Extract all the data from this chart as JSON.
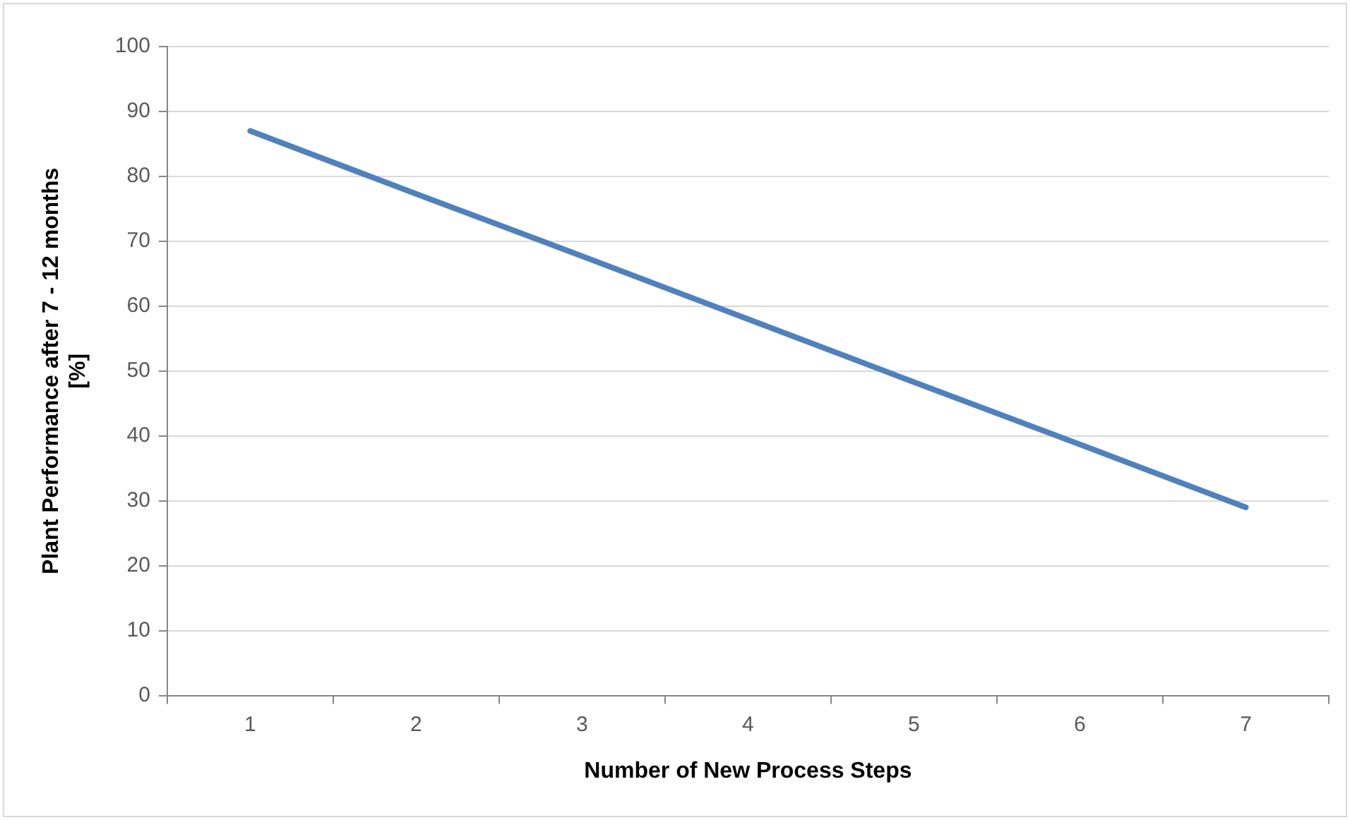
{
  "chart_data": {
    "type": "line",
    "xlabel": "Number of New Process Steps",
    "ylabel": "Plant Performance after 7 - 12 months [%]",
    "categories": [
      "1",
      "2",
      "3",
      "4",
      "5",
      "6",
      "7"
    ],
    "series": [
      {
        "color": "#4f81bd",
        "values": [
          87,
          77.3,
          67.7,
          58,
          48.3,
          38.7,
          29
        ]
      }
    ],
    "ylim": [
      0,
      100
    ],
    "yticks": [
      0,
      10,
      20,
      30,
      40,
      50,
      60,
      70,
      80,
      90,
      100
    ],
    "grid": "y",
    "legend": false,
    "marker": "none",
    "line_style": "solid"
  }
}
